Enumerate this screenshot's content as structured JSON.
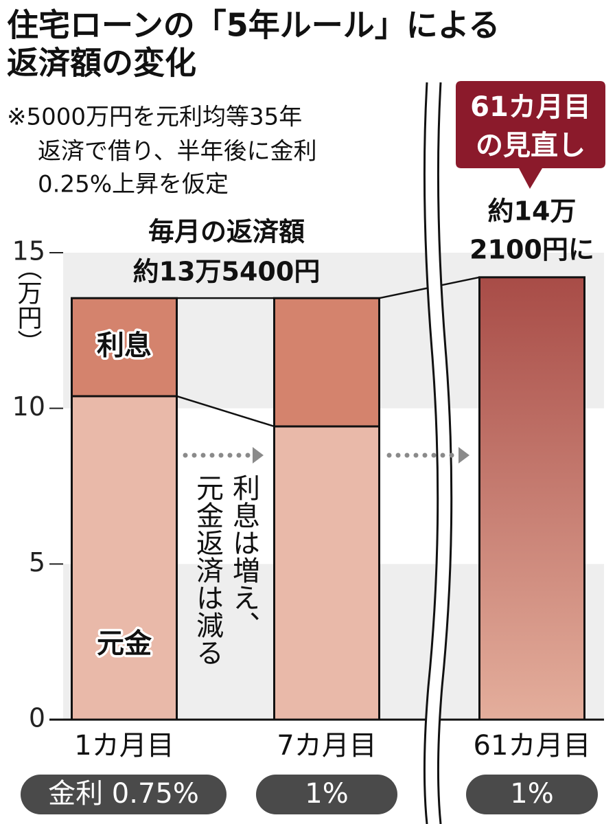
{
  "chart_data": {
    "type": "bar",
    "title": [
      "住宅ローンの「5年ルール」による",
      "返済額の変化"
    ],
    "note": [
      "※5000万円を元利均等35年",
      "返済で借り、半年後に金利",
      "0.25%上昇を仮定"
    ],
    "y_label": "（万円）",
    "categories": [
      "1カ月目",
      "7カ月目",
      "61カ月目"
    ],
    "rates": [
      "金利 0.75%",
      "1%",
      "1%"
    ],
    "stacked": true,
    "series": [
      {
        "name": "元金",
        "color": "#e9b9a9",
        "values": [
          10.39,
          9.42,
          null
        ]
      },
      {
        "name": "利息",
        "color": "#d4836d",
        "values": [
          3.15,
          4.12,
          null
        ]
      },
      {
        "color": "#a84c47",
        "gradient_to": "#e4ae9c",
        "values": [
          null,
          null,
          14.21
        ]
      }
    ],
    "annotations": [
      {
        "text": [
          "毎月の返済額",
          "約13万5400円"
        ]
      },
      {
        "text": [
          "約14万",
          "2100円に"
        ]
      }
    ],
    "callout": [
      "61カ月目",
      "の見直し"
    ],
    "side_note": [
      "利息は増え、",
      "元金返済は減る"
    ],
    "ylim": [
      0,
      15
    ],
    "yticks": [
      0,
      5,
      10,
      15
    ],
    "bands": true
  }
}
